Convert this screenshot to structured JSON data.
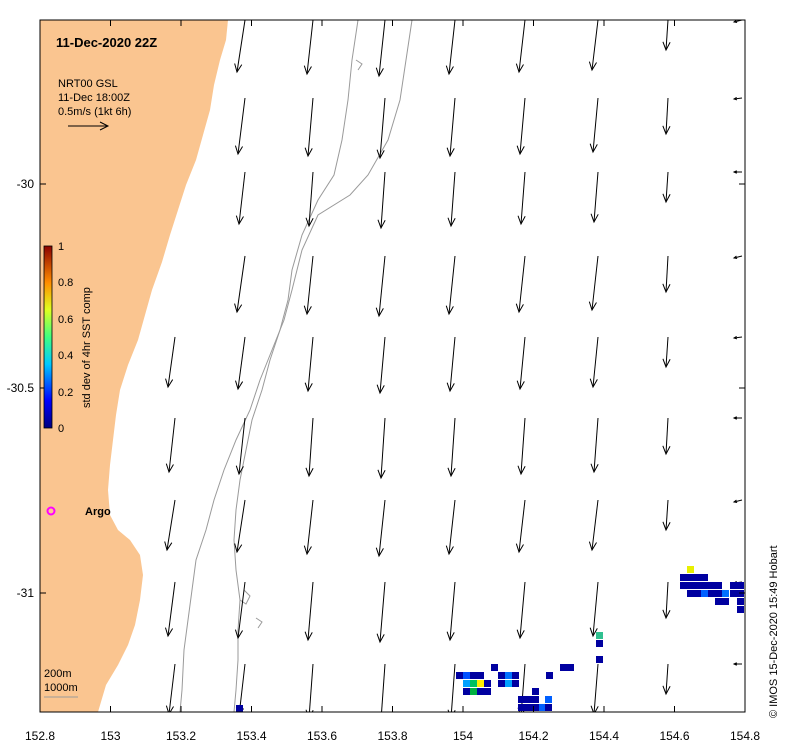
{
  "map": {
    "title": "11-Dec-2020 22Z",
    "legend": {
      "line1": "NRT00 GSL",
      "line2": "11-Dec 18:00Z",
      "line3": "0.5m/s (1kt 6h)"
    },
    "colorbar": {
      "label": "std dev of 4hr SST comp",
      "ticks": [
        "1",
        "0.8",
        "0.6",
        "0.4",
        "0.2",
        "0"
      ]
    },
    "depth_labels": [
      "200m",
      "1000m"
    ],
    "argo_label": "Argo",
    "credit": "© IMOS 15-Dec-2020 15:49 Hobart",
    "x_ticks": [
      "152.8",
      "153",
      "153.2",
      "153.4",
      "153.6",
      "153.8",
      "154",
      "154.2",
      "154.4",
      "154.6",
      "154.8"
    ],
    "y_ticks": [
      "-30",
      "-30.5",
      "-31"
    ],
    "colors": {
      "land": "#fac590",
      "arrow": "#000000",
      "bathymetry": "#9a9a9a",
      "argo": "#ff00ff"
    }
  }
}
